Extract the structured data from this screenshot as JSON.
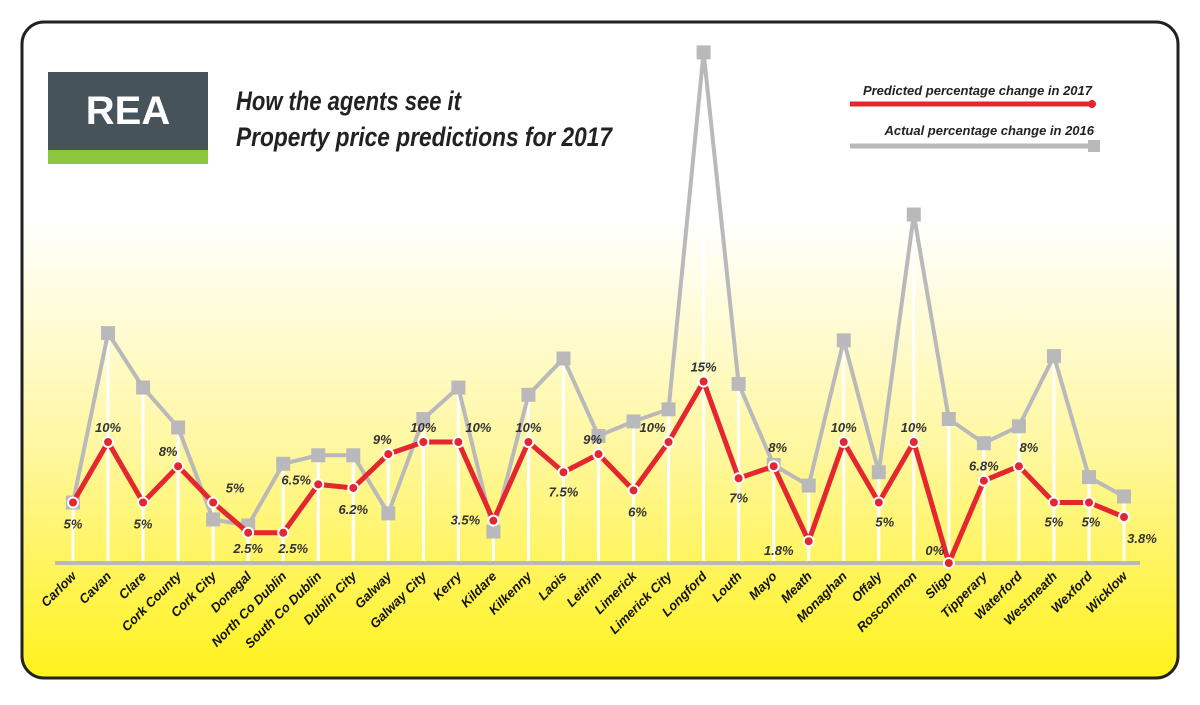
{
  "logo": {
    "text": "REA",
    "color_top": "#46535b",
    "color_bottom": "#8cc63f"
  },
  "title_line1": "How the agents see it",
  "title_line2": "Property price predictions for 2017",
  "chart_data": {
    "type": "line",
    "title": "How the agents see it / Property price predictions for 2017",
    "legend_placement": "top-right",
    "grid": "vertical lines at each category",
    "ylim": [
      0,
      43
    ],
    "categories": [
      "Carlow",
      "Cavan",
      "Clare",
      "Cork County",
      "Cork City",
      "Donegal",
      "North Co Dublin",
      "South Co Dublin",
      "Dublin City",
      "Galway",
      "Galway City",
      "Kerry",
      "Kildare",
      "Kilkenny",
      "Laois",
      "Leitrim",
      "Limerick",
      "Limerick City",
      "Longford",
      "Louth",
      "Mayo",
      "Meath",
      "Monaghan",
      "Offaly",
      "Roscommon",
      "Sligo",
      "Tipperary",
      "Waterford",
      "Westmeath",
      "Wexford",
      "Wicklow"
    ],
    "series": [
      {
        "name": "Predicted percentage change in 2017",
        "color": "#e3262f",
        "values": [
          5,
          10,
          5,
          8,
          5,
          2.5,
          2.5,
          6.5,
          6.2,
          9,
          10,
          10,
          3.5,
          10,
          7.5,
          9,
          6,
          10,
          15,
          7,
          8,
          1.8,
          10,
          5,
          10,
          0,
          6.8,
          8,
          5,
          5,
          3.8
        ],
        "labels": [
          "5%",
          "10%",
          "5%",
          "8%",
          "5%",
          "2.5%",
          "2.5%",
          "6.5%",
          "6.2%",
          "9%",
          "10%",
          "10%",
          "3.5%",
          "10%",
          "7.5%",
          "9%",
          "6%",
          "10%",
          "15%",
          "7%",
          "8%",
          "1.8%",
          "10%",
          "5%",
          "10%",
          "0%",
          "6.8%",
          "8%",
          "5%",
          "5%",
          "3.8%"
        ]
      },
      {
        "name": "Actual percentage change in 2016",
        "color": "#b9b9bb",
        "values": [
          5,
          19.0,
          14.5,
          11.2,
          3.6,
          3.1,
          8.2,
          8.9,
          8.9,
          4.1,
          11.9,
          14.5,
          2.6,
          13.9,
          16.9,
          10.5,
          11.7,
          12.7,
          42.2,
          14.8,
          8.1,
          6.4,
          18.4,
          7.5,
          28.8,
          11.9,
          9.9,
          11.3,
          17.1,
          7.1,
          5.5
        ]
      }
    ]
  }
}
